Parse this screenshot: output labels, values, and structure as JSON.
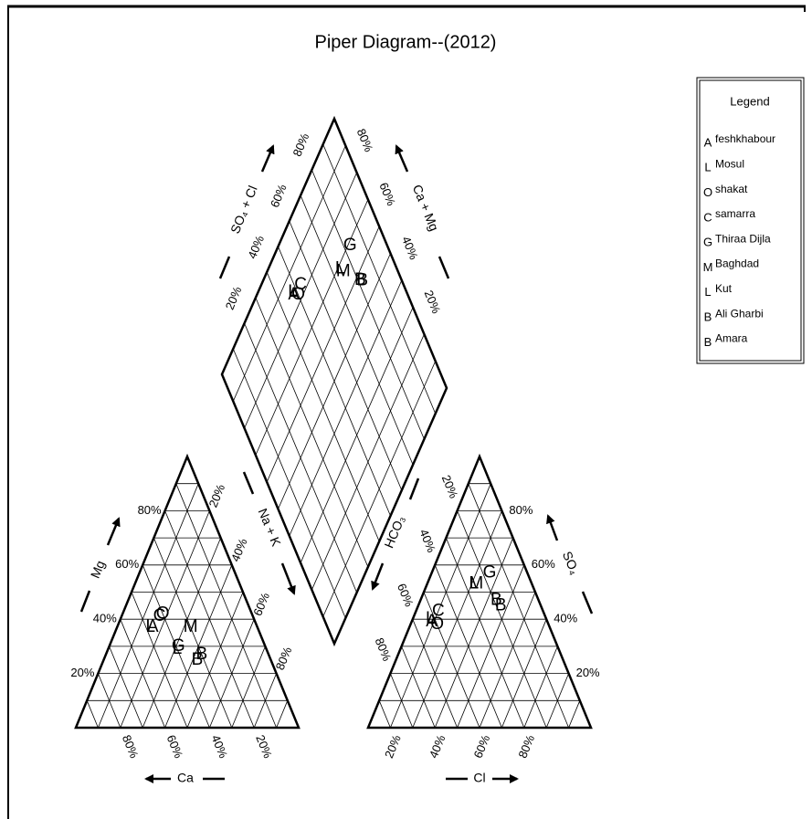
{
  "chart_data": {
    "type": "piper",
    "title": "Piper Diagram--(2012)",
    "legend_title": "Legend",
    "grid": [
      10,
      20,
      30,
      40,
      50,
      60,
      70,
      80,
      90
    ],
    "axes": {
      "mg": {
        "label": "Mg",
        "ticks": [
          {
            "value": 20,
            "label": "20%"
          },
          {
            "value": 40,
            "label": "40%"
          },
          {
            "value": 60,
            "label": "60%"
          },
          {
            "value": 80,
            "label": "80%"
          }
        ]
      },
      "ca": {
        "label": "Ca",
        "ticks": [
          {
            "value": 20,
            "label": "20%"
          },
          {
            "value": 40,
            "label": "40%"
          },
          {
            "value": 60,
            "label": "60%"
          },
          {
            "value": 80,
            "label": "80%"
          }
        ]
      },
      "na_k": {
        "label": "Na + K",
        "ticks": [
          {
            "value": 20,
            "label": "20%"
          },
          {
            "value": 40,
            "label": "40%"
          },
          {
            "value": 60,
            "label": "60%"
          },
          {
            "value": 80,
            "label": "80%"
          }
        ]
      },
      "hco3": {
        "label": "HCO₃",
        "ticks": [
          {
            "value": 20,
            "label": "20%"
          },
          {
            "value": 40,
            "label": "40%"
          },
          {
            "value": 60,
            "label": "60%"
          },
          {
            "value": 80,
            "label": "80%"
          }
        ]
      },
      "so4": {
        "label": "SO₄",
        "ticks": [
          {
            "value": 20,
            "label": "20%"
          },
          {
            "value": 40,
            "label": "40%"
          },
          {
            "value": 60,
            "label": "60%"
          },
          {
            "value": 80,
            "label": "80%"
          }
        ]
      },
      "cl": {
        "label": "Cl",
        "ticks": [
          {
            "value": 20,
            "label": "20%"
          },
          {
            "value": 40,
            "label": "40%"
          },
          {
            "value": 60,
            "label": "60%"
          },
          {
            "value": 80,
            "label": "80%"
          }
        ]
      },
      "so4_cl": {
        "label": "SO₄ + Cl",
        "ticks": [
          {
            "value": 20,
            "label": "20%"
          },
          {
            "value": 40,
            "label": "40%"
          },
          {
            "value": 60,
            "label": "60%"
          },
          {
            "value": 80,
            "label": "80%"
          }
        ]
      },
      "ca_mg": {
        "label": "Ca + Mg",
        "ticks": [
          {
            "value": 20,
            "label": "20%"
          },
          {
            "value": 40,
            "label": "40%"
          },
          {
            "value": 60,
            "label": "60%"
          },
          {
            "value": 80,
            "label": "80%"
          }
        ]
      }
    },
    "series": [
      {
        "name": "feshkhabour",
        "marker": "A",
        "color": "#1f6fd0",
        "cations": [
          47,
          37,
          16
        ],
        "anions": [
          52,
          39,
          9
        ]
      },
      {
        "name": "Mosul",
        "marker": "L",
        "color": "#0a14c8",
        "cations": [
          48,
          37,
          15
        ],
        "anions": [
          52,
          40,
          8
        ]
      },
      {
        "name": "shakat",
        "marker": "O",
        "color": "#c8c800",
        "cations": [
          40,
          42,
          18
        ],
        "anions": [
          50,
          38,
          12
        ]
      },
      {
        "name": "samarra",
        "marker": "C",
        "color": "#66c814",
        "cations": [
          42,
          41,
          17
        ],
        "anions": [
          47,
          43,
          10
        ]
      },
      {
        "name": "Thiraa Dijla",
        "marker": "G",
        "color": "#1a5cb8",
        "cations": [
          39,
          30,
          31
        ],
        "anions": [
          17,
          57,
          26
        ]
      },
      {
        "name": "Baghdad",
        "marker": "M",
        "color": "#b8145a",
        "cations": [
          30,
          37,
          33
        ],
        "anions": [
          25,
          53,
          22
        ]
      },
      {
        "name": "Kut",
        "marker": "L",
        "color": "#e0206e",
        "cations": [
          40,
          29,
          31
        ],
        "anions": [
          26,
          53,
          21
        ]
      },
      {
        "name": "Ali Gharbi",
        "marker": "B",
        "color": "#1eaa28",
        "cations": [
          33,
          25,
          42
        ],
        "anions": [
          19,
          47,
          34
        ]
      },
      {
        "name": "Amara",
        "marker": "B",
        "color": "#6cc81e",
        "cations": [
          30,
          27,
          43
        ],
        "anions": [
          18,
          45,
          37
        ]
      }
    ]
  }
}
